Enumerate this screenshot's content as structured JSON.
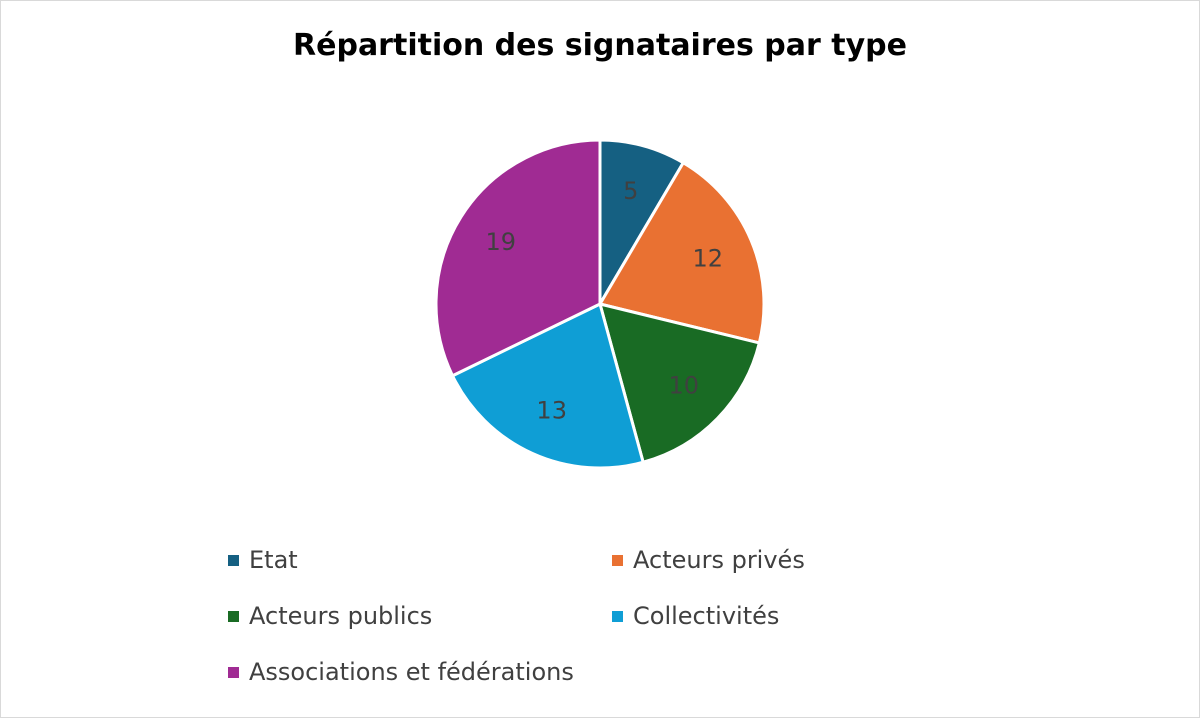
{
  "chart_data": {
    "type": "pie",
    "title": "Répartition des signataires par type",
    "categories": [
      "Etat",
      "Acteurs privés",
      "Acteurs publics",
      "Collectivités",
      "Associations et fédérations"
    ],
    "values": [
      5,
      12,
      10,
      13,
      19
    ],
    "colors": [
      "#156082",
      "#E97132",
      "#196B24",
      "#0F9ED5",
      "#A02B93"
    ],
    "data_labels": [
      "5",
      "12",
      "10",
      "13",
      "19"
    ],
    "legend_placement": "bottom",
    "start_angle_deg": 0,
    "direction": "clockwise"
  }
}
